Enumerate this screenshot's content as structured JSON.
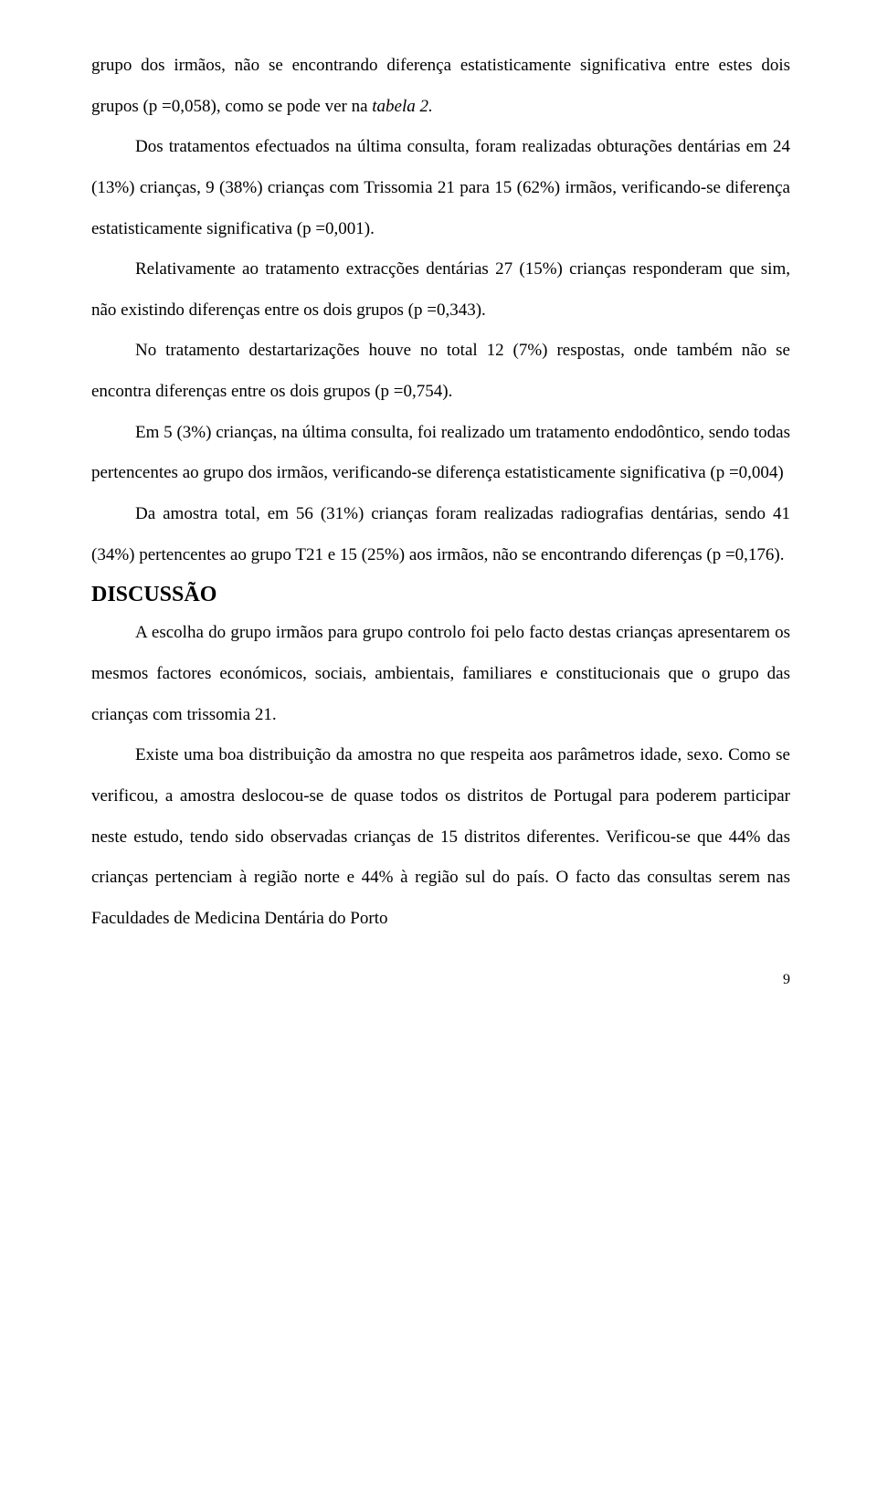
{
  "p1_a": "grupo dos irmãos, não se encontrando diferença estatisticamente significativa entre estes dois grupos (p =0,058), como se pode ver na ",
  "p1_b": "tabela 2.",
  "p2": "Dos tratamentos efectuados na última consulta, foram realizadas obturações dentárias em 24 (13%) crianças, 9 (38%) crianças com Trissomia 21 para 15 (62%) irmãos, verificando-se diferença estatisticamente significativa (p =0,001).",
  "p3": "Relativamente ao tratamento extracções dentárias 27 (15%) crianças responderam que sim, não existindo diferenças entre os dois grupos (p =0,343).",
  "p4": "No tratamento destartarizações houve no total 12 (7%) respostas, onde também não se encontra diferenças entre os dois grupos (p =0,754).",
  "p5": "Em 5 (3%) crianças, na última consulta, foi realizado um tratamento endodôntico, sendo todas pertencentes ao grupo dos irmãos, verificando-se diferença estatisticamente significativa (p =0,004)",
  "p6": "Da amostra total, em 56 (31%) crianças foram realizadas radiografias dentárias, sendo 41 (34%) pertencentes ao grupo T21 e 15 (25%) aos irmãos, não se encontrando diferenças (p =0,176).",
  "heading": "DISCUSSÃO",
  "p7": "A escolha do grupo irmãos para grupo controlo foi pelo facto destas crianças apresentarem os mesmos factores económicos, sociais, ambientais, familiares e constitucionais que o grupo das crianças com trissomia 21.",
  "p8": "Existe uma boa distribuição da amostra no que respeita aos parâmetros idade, sexo. Como se verificou, a amostra deslocou-se de quase todos os distritos de Portugal para poderem participar neste estudo, tendo sido observadas crianças de 15 distritos diferentes. Verificou-se que 44% das crianças pertenciam à região norte e 44% à região sul do país. O facto das consultas serem nas Faculdades de Medicina Dentária do Porto",
  "page_number": "9"
}
